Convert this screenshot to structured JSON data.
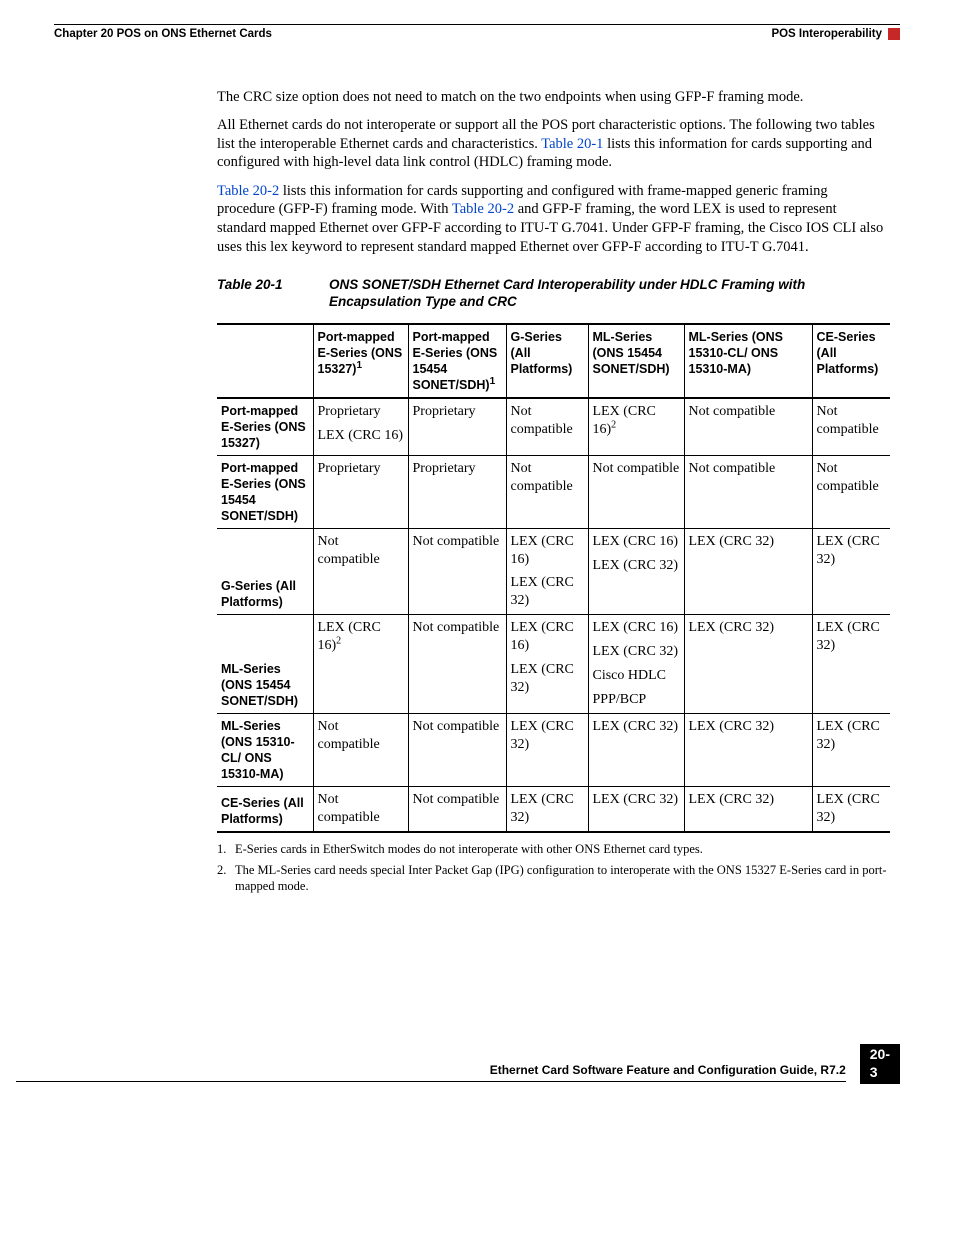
{
  "header": {
    "chapter": "Chapter 20    POS on ONS Ethernet Cards",
    "section": "POS Interoperability"
  },
  "paragraphs": {
    "p1": "The CRC size option does not need to match on the two endpoints when using GFP-F framing mode.",
    "p2_a": "All Ethernet cards do not interoperate or support all the POS port characteristic options. The following two tables list the interoperable Ethernet cards and characteristics. ",
    "p2_link": "Table 20-1",
    "p2_b": " lists this information for cards supporting and configured with high-level data link control (HDLC) framing mode.",
    "p3_link1": "Table 20-2",
    "p3_a": " lists this information for cards supporting and configured with frame-mapped generic framing procedure (GFP-F) framing mode. With ",
    "p3_link2": "Table 20-2",
    "p3_b": " and GFP-F framing, the word LEX is used to represent standard mapped Ethernet over GFP-F according to ITU-T G.7041. Under GFP-F framing, the Cisco IOS CLI also uses this lex keyword to represent standard mapped Ethernet over GFP-F according to ITU-T G.7041."
  },
  "table": {
    "number": "Table 20-1",
    "title": "ONS SONET/SDH Ethernet Card Interoperability under HDLC Framing with Encapsulation Type and CRC",
    "columns": [
      "",
      "Port-mapped E-Series (ONS 15327)",
      "Port-mapped E-Series (ONS 15454 SONET/SDH)",
      "G-Series (All Platforms)",
      "ML-Series (ONS 15454 SONET/SDH)",
      "ML-Series (ONS 15310-CL/ ONS 15310-MA)",
      "CE-Series (All Platforms)"
    ],
    "col_sup": {
      "1": "1",
      "2": "1"
    },
    "rows": [
      {
        "hdr": "Port-mapped E-Series (ONS 15327)",
        "cells": [
          {
            "lines": [
              "Proprietary",
              "LEX (CRC 16)"
            ]
          },
          {
            "lines": [
              "Proprietary"
            ]
          },
          {
            "lines": [
              "Not compatible"
            ]
          },
          {
            "lines": [
              "LEX (CRC 16)"
            ],
            "sup": "2"
          },
          {
            "lines": [
              "Not compatible"
            ]
          },
          {
            "lines": [
              "Not compatible"
            ]
          }
        ]
      },
      {
        "hdr": "Port-mapped E-Series (ONS 15454 SONET/SDH)",
        "cells": [
          {
            "lines": [
              "Proprietary"
            ]
          },
          {
            "lines": [
              "Proprietary"
            ]
          },
          {
            "lines": [
              "Not compatible"
            ]
          },
          {
            "lines": [
              "Not compatible"
            ]
          },
          {
            "lines": [
              "Not compatible"
            ]
          },
          {
            "lines": [
              "Not compatible"
            ]
          }
        ]
      },
      {
        "hdr": "G-Series (All Platforms)",
        "cells": [
          {
            "lines": [
              "Not compatible"
            ]
          },
          {
            "lines": [
              "Not compatible"
            ]
          },
          {
            "lines": [
              "LEX (CRC 16)",
              "LEX (CRC 32)"
            ]
          },
          {
            "lines": [
              "LEX (CRC 16)",
              "LEX (CRC 32)"
            ]
          },
          {
            "lines": [
              "LEX (CRC 32)"
            ]
          },
          {
            "lines": [
              "LEX (CRC 32)"
            ]
          }
        ]
      },
      {
        "hdr": "ML-Series (ONS 15454 SONET/SDH)",
        "cells": [
          {
            "lines": [
              "LEX (CRC 16)"
            ],
            "sup": "2"
          },
          {
            "lines": [
              "Not compatible"
            ]
          },
          {
            "lines": [
              "LEX (CRC 16)",
              "LEX (CRC 32)"
            ]
          },
          {
            "lines": [
              "LEX (CRC 16)",
              "LEX (CRC 32)",
              "Cisco HDLC",
              "PPP/BCP"
            ]
          },
          {
            "lines": [
              "LEX (CRC 32)"
            ]
          },
          {
            "lines": [
              "LEX (CRC 32)"
            ]
          }
        ]
      },
      {
        "hdr": "ML-Series (ONS 15310-CL/ ONS 15310-MA)",
        "cells": [
          {
            "lines": [
              "Not compatible"
            ]
          },
          {
            "lines": [
              "Not compatible"
            ]
          },
          {
            "lines": [
              "LEX (CRC 32)"
            ]
          },
          {
            "lines": [
              "LEX (CRC 32)"
            ]
          },
          {
            "lines": [
              "LEX (CRC 32)"
            ]
          },
          {
            "lines": [
              "LEX (CRC 32)"
            ]
          }
        ]
      },
      {
        "hdr": "CE-Series (All Platforms)",
        "cells": [
          {
            "lines": [
              "Not compatible"
            ]
          },
          {
            "lines": [
              "Not compatible"
            ]
          },
          {
            "lines": [
              "LEX (CRC 32)"
            ]
          },
          {
            "lines": [
              "LEX (CRC 32)"
            ]
          },
          {
            "lines": [
              "LEX (CRC 32)"
            ]
          },
          {
            "lines": [
              "LEX (CRC 32)"
            ]
          }
        ]
      }
    ]
  },
  "footnotes": {
    "f1_num": "1.",
    "f1_text": "E-Series cards in EtherSwitch modes do not interoperate with other ONS Ethernet card types.",
    "f2_num": "2.",
    "f2_text": "The ML-Series card needs special Inter Packet Gap (IPG) configuration to interoperate with the ONS 15327 E-Series card in port-mapped mode."
  },
  "footer": {
    "title": "Ethernet Card Software Feature and Configuration Guide, R7.2",
    "page": "20-3"
  }
}
